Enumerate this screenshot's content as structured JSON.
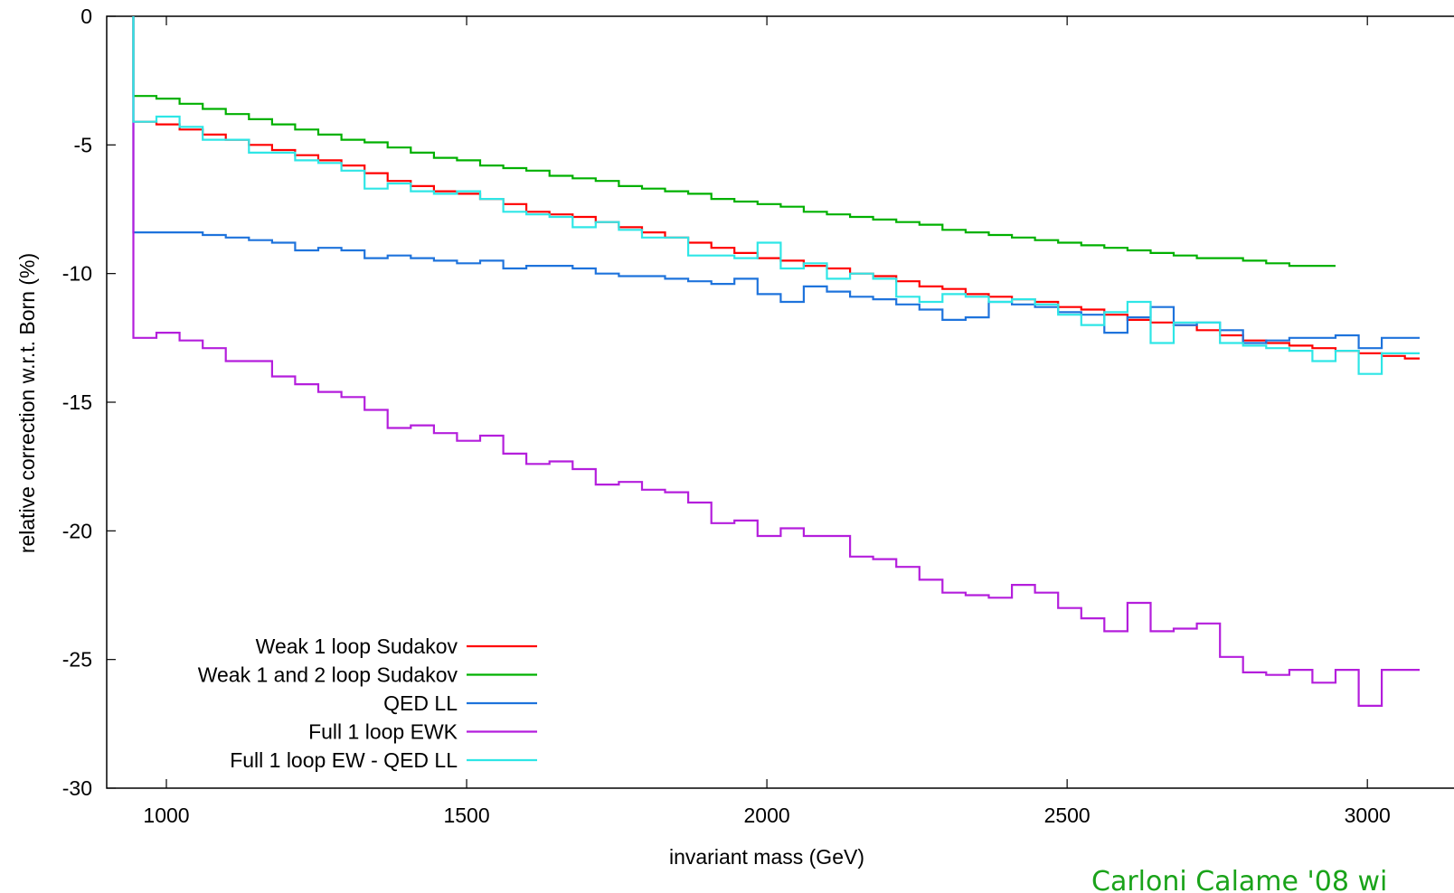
{
  "chart_data": {
    "type": "line",
    "title": "",
    "xlabel": "invariant mass (GeV)",
    "ylabel": "relative correction w.r.t. Born (%)",
    "xlim": [
      900,
      3080
    ],
    "ylim": [
      -30,
      0
    ],
    "xticks": [
      1000,
      1500,
      2000,
      2500,
      3000
    ],
    "yticks": [
      0,
      -5,
      -10,
      -15,
      -20,
      -25,
      -30
    ],
    "grid": false,
    "legend_position": "bottom-left",
    "step": true,
    "bin_width": 38.5,
    "x_start": 945,
    "series": [
      {
        "name": "Weak 1 loop Sudakov",
        "color": "#ff0000",
        "values": [
          -4.1,
          -4.2,
          -4.4,
          -4.6,
          -4.8,
          -5.0,
          -5.2,
          -5.4,
          -5.6,
          -5.8,
          -6.1,
          -6.4,
          -6.6,
          -6.8,
          -6.9,
          -7.1,
          -7.3,
          -7.6,
          -7.7,
          -7.8,
          -8.0,
          -8.2,
          -8.4,
          -8.6,
          -8.8,
          -9.0,
          -9.2,
          -9.4,
          -9.5,
          -9.7,
          -9.8,
          -10.0,
          -10.1,
          -10.3,
          -10.5,
          -10.6,
          -10.8,
          -10.9,
          -11.0,
          -11.1,
          -11.3,
          -11.4,
          -11.6,
          -11.8,
          -11.9,
          -12.0,
          -12.2,
          -12.4,
          -12.6,
          -12.7,
          -12.8,
          -12.9,
          -13.0,
          -13.1,
          -13.2,
          -13.3
        ]
      },
      {
        "name": "Weak 1 and 2 loop Sudakov",
        "color": "#00b000",
        "values": [
          -3.1,
          -3.2,
          -3.4,
          -3.6,
          -3.8,
          -4.0,
          -4.2,
          -4.4,
          -4.6,
          -4.8,
          -4.9,
          -5.1,
          -5.3,
          -5.5,
          -5.6,
          -5.8,
          -5.9,
          -6.0,
          -6.2,
          -6.3,
          -6.4,
          -6.6,
          -6.7,
          -6.8,
          -6.9,
          -7.1,
          -7.2,
          -7.3,
          -7.4,
          -7.6,
          -7.7,
          -7.8,
          -7.9,
          -8.0,
          -8.1,
          -8.3,
          -8.4,
          -8.5,
          -8.6,
          -8.7,
          -8.8,
          -8.9,
          -9.0,
          -9.1,
          -9.2,
          -9.3,
          -9.4,
          -9.4,
          -9.5,
          -9.6,
          -9.7,
          -9.7
        ]
      },
      {
        "name": "QED LL",
        "color": "#1e73dc",
        "values": [
          -8.4,
          -8.4,
          -8.4,
          -8.5,
          -8.6,
          -8.7,
          -8.8,
          -9.1,
          -9.0,
          -9.1,
          -9.4,
          -9.3,
          -9.4,
          -9.5,
          -9.6,
          -9.5,
          -9.8,
          -9.7,
          -9.7,
          -9.8,
          -10.0,
          -10.1,
          -10.1,
          -10.2,
          -10.3,
          -10.4,
          -10.2,
          -10.8,
          -11.1,
          -10.5,
          -10.7,
          -10.9,
          -11.0,
          -11.2,
          -11.4,
          -11.8,
          -11.7,
          -11.1,
          -11.2,
          -11.3,
          -11.5,
          -11.6,
          -12.3,
          -11.7,
          -11.3,
          -12.0,
          -11.9,
          -12.2,
          -12.7,
          -12.6,
          -12.5,
          -12.5,
          -12.4,
          -12.9,
          -12.5,
          -12.5
        ]
      },
      {
        "name": "Full 1 loop EWK",
        "color": "#b41edc",
        "values": [
          -12.5,
          -12.3,
          -12.6,
          -12.9,
          -13.4,
          -13.4,
          -14.0,
          -14.3,
          -14.6,
          -14.8,
          -15.3,
          -16.0,
          -15.9,
          -16.2,
          -16.5,
          -16.3,
          -17.0,
          -17.4,
          -17.3,
          -17.6,
          -18.2,
          -18.1,
          -18.4,
          -18.5,
          -18.9,
          -19.7,
          -19.6,
          -20.2,
          -19.9,
          -20.2,
          -20.2,
          -21.0,
          -21.1,
          -21.4,
          -21.9,
          -22.4,
          -22.5,
          -22.6,
          -22.1,
          -22.4,
          -23.0,
          -23.4,
          -23.9,
          -22.8,
          -23.9,
          -23.8,
          -23.6,
          -24.9,
          -25.5,
          -25.6,
          -25.4,
          -25.9,
          -25.4,
          -26.8,
          -25.4,
          -25.4
        ]
      },
      {
        "name": "Full 1 loop EW - QED LL",
        "color": "#2ee6e6",
        "values": [
          -4.1,
          -3.9,
          -4.3,
          -4.8,
          -4.8,
          -5.3,
          -5.3,
          -5.6,
          -5.7,
          -6.0,
          -6.7,
          -6.5,
          -6.8,
          -6.9,
          -6.8,
          -7.1,
          -7.6,
          -7.7,
          -7.8,
          -8.2,
          -8.0,
          -8.3,
          -8.6,
          -8.6,
          -9.3,
          -9.3,
          -9.4,
          -8.8,
          -9.8,
          -9.6,
          -10.2,
          -10.0,
          -10.2,
          -10.9,
          -11.1,
          -10.8,
          -10.9,
          -11.1,
          -11.0,
          -11.2,
          -11.6,
          -12.0,
          -11.5,
          -11.1,
          -12.7,
          -11.9,
          -11.9,
          -12.7,
          -12.8,
          -12.9,
          -13.0,
          -13.4,
          -13.0,
          -13.9,
          -13.1,
          -13.1
        ]
      }
    ]
  },
  "credit_text": "Carloni Calame '08 wi"
}
